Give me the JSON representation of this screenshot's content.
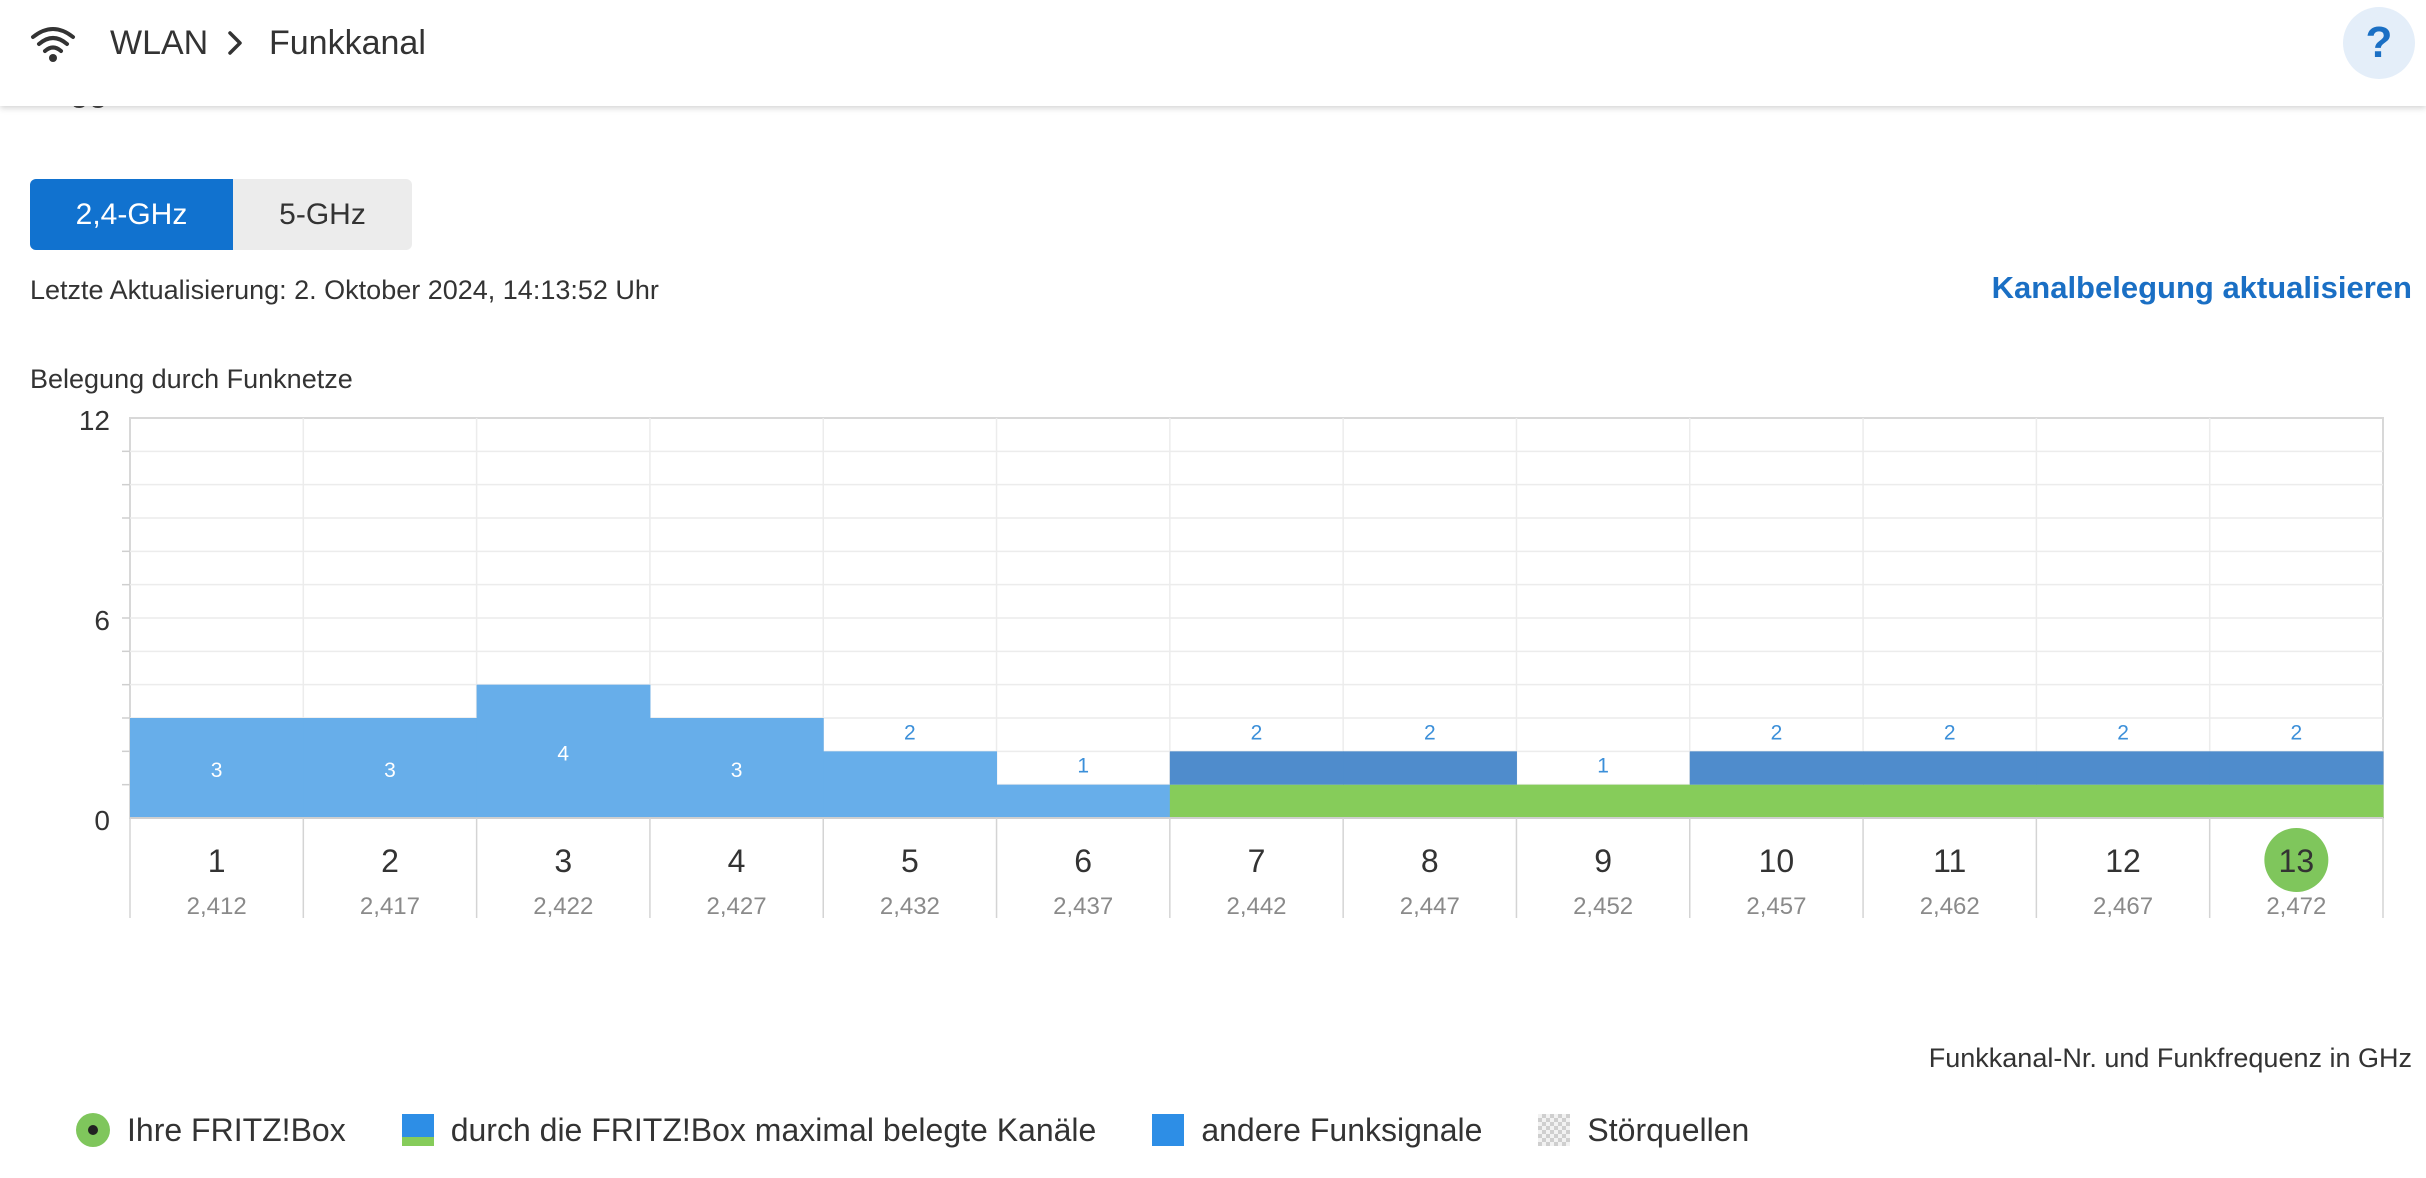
{
  "breadcrumb": {
    "section": "WLAN",
    "page": "Funkkanal"
  },
  "help": {
    "label": "?"
  },
  "scroll_remnant": "gg",
  "band_tabs": [
    {
      "label": "2,4-GHz",
      "active": true
    },
    {
      "label": "5-GHz",
      "active": false
    }
  ],
  "last_update": "Letzte Aktualisierung: 2. Oktober 2024, 14:13:52 Uhr",
  "refresh_link": "Kanalbelegung aktualisieren",
  "chart_title": "Belegung durch Funknetze",
  "chart_data": {
    "type": "bar",
    "title": "Belegung durch Funknetze",
    "xlabel": "Funkkanal-Nr. und Funkfrequenz in GHz",
    "ylim": [
      0,
      12
    ],
    "yticks": [
      0,
      6,
      12
    ],
    "grid": true,
    "categories": [
      "1",
      "2",
      "3",
      "4",
      "5",
      "6",
      "7",
      "8",
      "9",
      "10",
      "11",
      "12",
      "13"
    ],
    "frequencies": [
      "2,412",
      "2,417",
      "2,422",
      "2,427",
      "2,432",
      "2,437",
      "2,442",
      "2,447",
      "2,452",
      "2,457",
      "2,462",
      "2,467",
      "2,472"
    ],
    "values": [
      3,
      3,
      4,
      3,
      2,
      1,
      2,
      2,
      1,
      2,
      2,
      2,
      2
    ],
    "fritzbox_occupied": [
      false,
      false,
      false,
      false,
      false,
      false,
      true,
      true,
      true,
      true,
      true,
      true,
      true
    ],
    "fritzbox_channel": "13",
    "colors": {
      "other_signals": "#67aeea",
      "fritzbox_max": "#4f8ccc",
      "fritzbox_green": "#86cc5a",
      "active_channel": "#7fc65c"
    }
  },
  "axis_caption": "Funkkanal-Nr. und Funkfrequenz in GHz",
  "legend": [
    {
      "icon": "fritzbox-dot-icon",
      "label": "Ihre FRITZ!Box"
    },
    {
      "icon": "max-channels-swatch",
      "label": "durch die FRITZ!Box maximal belegte Kanäle"
    },
    {
      "icon": "other-signals-swatch",
      "label": "andere Funksignale"
    },
    {
      "icon": "interference-swatch",
      "label": "Störquellen"
    }
  ]
}
